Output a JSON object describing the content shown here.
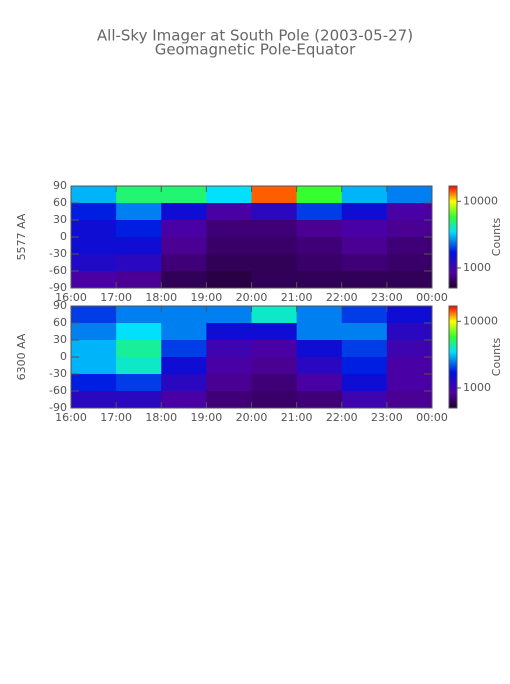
{
  "chart_data": [
    {
      "type": "heatmap",
      "title": "All-Sky Imager at South Pole (2003-05-27)",
      "subtitle": "Geomagnetic Pole-Equator",
      "ylabel": "5577 AA",
      "colorbar_label": "Counts",
      "colormap": "rainbow",
      "log_color": true,
      "xlim": [
        16,
        24
      ],
      "xticks": [
        {
          "value": 16,
          "label": "16:00"
        },
        {
          "value": 17,
          "label": "17:00"
        },
        {
          "value": 18,
          "label": "18:00"
        },
        {
          "value": 19,
          "label": "19:00"
        },
        {
          "value": 20,
          "label": "20:00"
        },
        {
          "value": 21,
          "label": "21:00"
        },
        {
          "value": 22,
          "label": "22:00"
        },
        {
          "value": 23,
          "label": "23:00"
        },
        {
          "value": 24,
          "label": "00:00"
        }
      ],
      "ylim": [
        -90,
        90
      ],
      "yticks": [
        90,
        60,
        30,
        0,
        -30,
        -60,
        -90
      ],
      "x_bins": [
        16,
        17,
        18,
        19,
        20,
        21,
        22,
        23,
        24
      ],
      "y_bins": [
        90,
        60,
        30,
        0,
        -30,
        -60,
        -90
      ],
      "values": [
        [
          3000,
          5000,
          5000,
          3500,
          14000,
          6000,
          3000,
          2500
        ],
        [
          1800,
          2500,
          1500,
          900,
          1200,
          2000,
          1500,
          900
        ],
        [
          1500,
          1800,
          900,
          700,
          700,
          800,
          900,
          800
        ],
        [
          1500,
          1500,
          800,
          650,
          650,
          700,
          800,
          700
        ],
        [
          1300,
          1200,
          700,
          600,
          600,
          650,
          700,
          650
        ],
        [
          900,
          800,
          600,
          550,
          600,
          600,
          600,
          600
        ]
      ],
      "clim": [
        500,
        17000
      ],
      "cticks": [
        1000,
        10000
      ]
    },
    {
      "type": "heatmap",
      "ylabel": "6300 AA",
      "colorbar_label": "Counts",
      "colormap": "rainbow",
      "log_color": true,
      "xlim": [
        16,
        24
      ],
      "xticks": [
        {
          "value": 16,
          "label": "16:00"
        },
        {
          "value": 17,
          "label": "17:00"
        },
        {
          "value": 18,
          "label": "18:00"
        },
        {
          "value": 19,
          "label": "19:00"
        },
        {
          "value": 20,
          "label": "20:00"
        },
        {
          "value": 21,
          "label": "21:00"
        },
        {
          "value": 22,
          "label": "22:00"
        },
        {
          "value": 23,
          "label": "23:00"
        },
        {
          "value": 24,
          "label": "00:00"
        }
      ],
      "ylim": [
        -90,
        90
      ],
      "yticks": [
        90,
        60,
        30,
        0,
        -30,
        -60,
        -90
      ],
      "x_bins": [
        16,
        17,
        18,
        19,
        20,
        21,
        22,
        23,
        24
      ],
      "y_bins": [
        90,
        60,
        30,
        0,
        -30,
        -60,
        -90
      ],
      "values": [
        [
          2000,
          2500,
          2500,
          2500,
          4000,
          2500,
          2000,
          1500
        ],
        [
          2500,
          3500,
          2500,
          1500,
          1500,
          2500,
          2500,
          1200
        ],
        [
          3000,
          4500,
          2000,
          1000,
          900,
          1500,
          2000,
          1000
        ],
        [
          3000,
          4000,
          1500,
          900,
          800,
          1200,
          1800,
          900
        ],
        [
          1800,
          2000,
          1200,
          800,
          700,
          900,
          1500,
          900
        ],
        [
          1200,
          1200,
          900,
          700,
          650,
          700,
          1000,
          800
        ]
      ],
      "clim": [
        500,
        17000
      ],
      "cticks": [
        1000,
        10000
      ]
    }
  ]
}
